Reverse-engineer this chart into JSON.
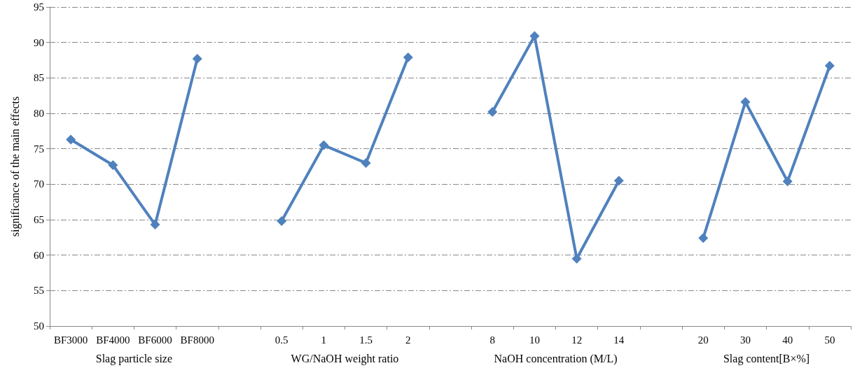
{
  "chart_data": {
    "type": "line",
    "ylabel": "significance of the main effects",
    "categories": [
      "BF3000",
      "BF4000",
      "BF6000",
      "BF8000",
      null,
      "0.5",
      "1",
      "1.5",
      "2",
      null,
      "8",
      "10",
      "12",
      "14",
      null,
      "20",
      "30",
      "40",
      "50"
    ],
    "series": [
      {
        "color": "#4f81bd",
        "values": [
          76.3,
          72.7,
          64.3,
          87.7,
          null,
          64.8,
          75.5,
          73.0,
          87.9,
          null,
          80.2,
          90.9,
          59.5,
          70.5,
          null,
          62.4,
          81.6,
          70.4,
          86.7
        ]
      }
    ],
    "ylim": [
      50,
      95
    ],
    "yticks": [
      50,
      55,
      60,
      65,
      70,
      75,
      80,
      85,
      90,
      95
    ],
    "annotations": [
      "Slag particle size",
      "WG/NaOH weight ratio",
      "NaOH concentration (M/L)",
      "Slag content[B×%]"
    ],
    "grid": "y",
    "marker": "diamond",
    "line_style": "solid"
  }
}
